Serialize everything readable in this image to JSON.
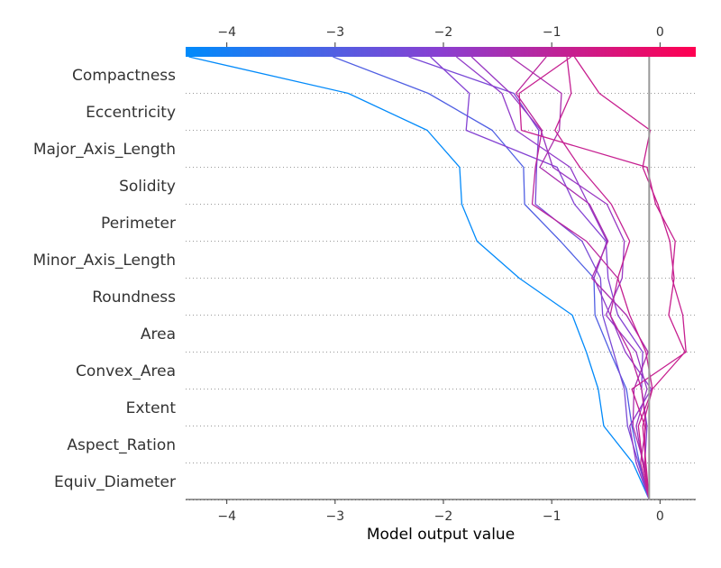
{
  "chart_data": {
    "type": "line",
    "chart_kind": "decision-plot",
    "title": "",
    "xlabel": "Model output value",
    "ylabel": "",
    "xlim": [
      -4.38,
      0.33
    ],
    "xticks": [
      -4,
      -3,
      -2,
      -1,
      0
    ],
    "xtick_labels": [
      "−4",
      "−3",
      "−2",
      "−1",
      "0"
    ],
    "base_value": -0.1,
    "features": [
      "Compactness",
      "Eccentricity",
      "Major_Axis_Length",
      "Solidity",
      "Perimeter",
      "Minor_Axis_Length",
      "Roundness",
      "Area",
      "Convex_Area",
      "Extent",
      "Aspect_Ration",
      "Equiv_Diameter"
    ],
    "colormap": {
      "low": "#008bfb",
      "mid": "#8a3fd1",
      "high": "#ff0051"
    },
    "color_range": [
      -4.38,
      0.33
    ],
    "grid": "dotted-horizontal",
    "series": [
      {
        "values": [
          -4.35,
          -2.88,
          -2.15,
          -1.85,
          -1.83,
          -1.69,
          -1.3,
          -0.81,
          -0.68,
          -0.57,
          -0.52,
          -0.25,
          -0.1
        ]
      },
      {
        "values": [
          -3.02,
          -2.14,
          -1.55,
          -1.26,
          -1.25,
          -0.92,
          -0.61,
          -0.6,
          -0.46,
          -0.31,
          -0.26,
          -0.19,
          -0.1
        ]
      },
      {
        "values": [
          -2.32,
          -1.35,
          -1.12,
          -1.14,
          -1.15,
          -0.72,
          -0.55,
          -0.53,
          -0.43,
          -0.33,
          -0.3,
          -0.2,
          -0.1
        ]
      },
      {
        "values": [
          -2.12,
          -1.76,
          -1.79,
          -0.95,
          -0.79,
          -0.5,
          -0.48,
          -0.39,
          -0.16,
          -0.17,
          -0.12,
          -0.14,
          -0.1
        ]
      },
      {
        "values": [
          -1.88,
          -1.46,
          -1.33,
          -0.83,
          -0.66,
          -0.49,
          -0.61,
          -0.46,
          -0.32,
          -0.08,
          -0.28,
          -0.22,
          -0.1
        ]
      },
      {
        "values": [
          -1.74,
          -1.38,
          -1.1,
          -0.99,
          -0.49,
          -0.33,
          -0.35,
          -0.5,
          -0.22,
          -0.12,
          -0.22,
          -0.16,
          -0.1
        ]
      },
      {
        "values": [
          -1.38,
          -0.91,
          -0.93,
          -1.11,
          -0.65,
          -0.48,
          -0.63,
          -0.31,
          -0.11,
          -0.24,
          -0.25,
          -0.15,
          -0.1
        ]
      },
      {
        "values": [
          -1.05,
          -1.33,
          -1.09,
          -1.15,
          -1.18,
          -0.68,
          -0.39,
          -0.46,
          -0.28,
          -0.17,
          -0.13,
          -0.18,
          -0.1
        ]
      },
      {
        "values": [
          -0.86,
          -0.82,
          -0.97,
          -0.74,
          -0.45,
          -0.28,
          -0.39,
          -0.28,
          -0.13,
          -0.07,
          -0.2,
          -0.16,
          -0.1
        ]
      },
      {
        "values": [
          -0.82,
          -1.3,
          -1.28,
          -0.12,
          -0.04,
          0.14,
          0.11,
          0.21,
          0.24,
          -0.26,
          -0.14,
          -0.14,
          -0.1
        ]
      },
      {
        "values": [
          -0.79,
          -0.56,
          -0.09,
          -0.16,
          -0.02,
          0.09,
          0.13,
          0.08,
          0.23,
          -0.07,
          -0.16,
          -0.13,
          -0.1
        ]
      }
    ]
  }
}
